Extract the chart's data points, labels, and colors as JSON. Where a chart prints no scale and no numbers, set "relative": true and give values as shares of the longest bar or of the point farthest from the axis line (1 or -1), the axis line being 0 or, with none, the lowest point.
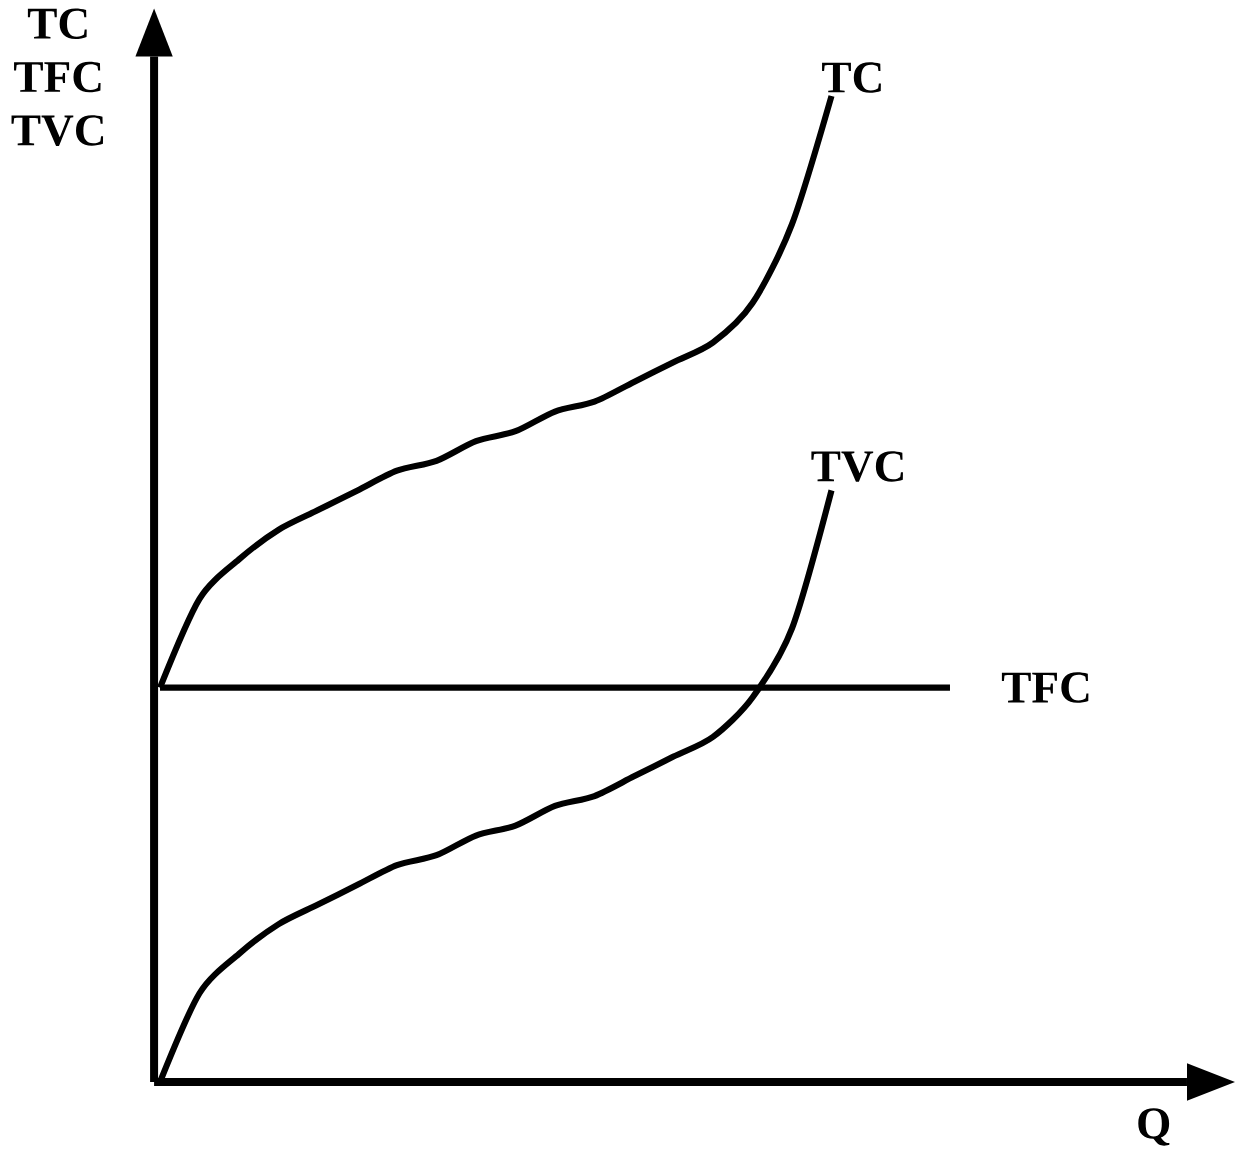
{
  "chart_data": {
    "type": "line",
    "relative": true,
    "xlabel": "Q",
    "ylabel": "TC TFC TVC",
    "categories": [
      null,
      null,
      null,
      null,
      null,
      null,
      null,
      null,
      null,
      null,
      null,
      null,
      null,
      null,
      null,
      null,
      null,
      null,
      null,
      null,
      null
    ],
    "series": [
      {
        "name": "TC",
        "color": "#000000",
        "values": [
          0.4,
          0.49,
          0.53,
          0.56,
          0.58,
          0.6,
          0.62,
          0.63,
          0.65,
          0.66,
          0.68,
          0.69,
          0.71,
          0.73,
          0.75,
          0.79,
          0.87,
          1.0,
          null,
          null,
          null
        ]
      },
      {
        "name": "TVC",
        "color": "#000000",
        "values": [
          0.0,
          0.09,
          0.13,
          0.16,
          0.18,
          0.2,
          0.22,
          0.23,
          0.25,
          0.26,
          0.28,
          0.29,
          0.31,
          0.33,
          0.35,
          0.39,
          0.46,
          0.6,
          null,
          null,
          null
        ]
      },
      {
        "name": "TFC",
        "color": "#000000",
        "values": [
          0.4,
          0.4,
          0.4,
          0.4,
          0.4,
          0.4,
          0.4,
          0.4,
          0.4,
          0.4,
          0.4,
          0.4,
          0.4,
          0.4,
          0.4,
          0.4,
          0.4,
          0.4,
          0.4,
          0.4,
          0.4
        ]
      }
    ]
  }
}
